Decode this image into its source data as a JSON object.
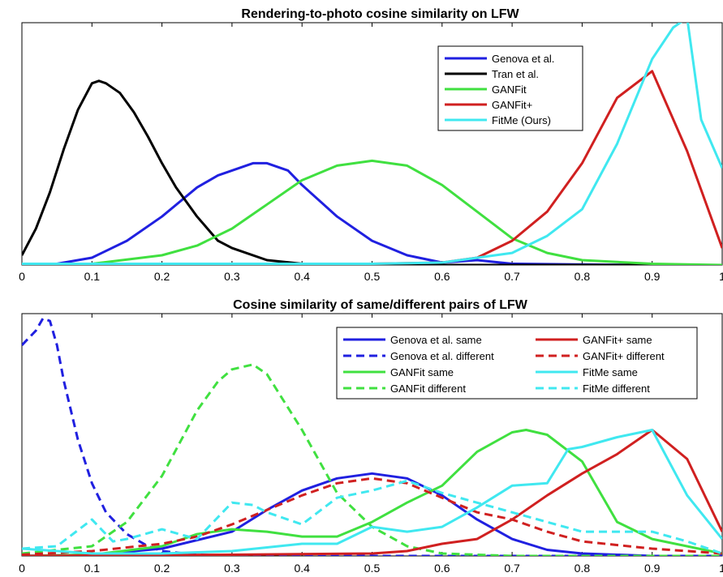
{
  "chart_data": [
    {
      "type": "line",
      "title": "Rendering-to-photo cosine similarity on LFW",
      "xlabel": "",
      "ylabel": "",
      "xlim": [
        0,
        1
      ],
      "ylim": [
        0,
        1
      ],
      "xticks": [
        0,
        0.1,
        0.2,
        0.3,
        0.4,
        0.5,
        0.6,
        0.7,
        0.8,
        0.9,
        1
      ],
      "yticks_shown": false,
      "grid": false,
      "legend_position": "top-right",
      "legend_columns": 1,
      "series": [
        {
          "name": "Genova et al.",
          "color": "#2020e0",
          "dash": "solid",
          "x": [
            0,
            0.05,
            0.1,
            0.15,
            0.2,
            0.25,
            0.28,
            0.3,
            0.33,
            0.35,
            0.38,
            0.4,
            0.45,
            0.5,
            0.55,
            0.6,
            0.65,
            0.7,
            0.8,
            0.9,
            1
          ],
          "y": [
            0,
            0.005,
            0.03,
            0.1,
            0.2,
            0.32,
            0.37,
            0.39,
            0.42,
            0.42,
            0.39,
            0.33,
            0.2,
            0.1,
            0.04,
            0.01,
            0.02,
            0.005,
            0.002,
            0,
            0
          ]
        },
        {
          "name": "Tran et al.",
          "color": "#000000",
          "dash": "solid",
          "x": [
            0,
            0.02,
            0.04,
            0.06,
            0.08,
            0.1,
            0.11,
            0.12,
            0.14,
            0.16,
            0.18,
            0.2,
            0.22,
            0.25,
            0.28,
            0.3,
            0.35,
            0.4,
            0.5,
            0.6,
            1
          ],
          "y": [
            0.04,
            0.15,
            0.3,
            0.48,
            0.64,
            0.75,
            0.76,
            0.75,
            0.71,
            0.63,
            0.53,
            0.42,
            0.32,
            0.2,
            0.1,
            0.07,
            0.02,
            0.005,
            0.002,
            0,
            0
          ]
        },
        {
          "name": "GANFit",
          "color": "#40e040",
          "dash": "solid",
          "x": [
            0,
            0.1,
            0.2,
            0.25,
            0.3,
            0.35,
            0.4,
            0.45,
            0.5,
            0.55,
            0.6,
            0.65,
            0.7,
            0.75,
            0.8,
            0.9,
            1
          ],
          "y": [
            0,
            0.005,
            0.04,
            0.08,
            0.15,
            0.25,
            0.35,
            0.41,
            0.43,
            0.41,
            0.33,
            0.22,
            0.11,
            0.05,
            0.02,
            0.005,
            0
          ]
        },
        {
          "name": "GANFit+",
          "color": "#d02020",
          "dash": "solid",
          "x": [
            0,
            0.4,
            0.5,
            0.6,
            0.65,
            0.7,
            0.75,
            0.8,
            0.85,
            0.9,
            0.95,
            1
          ],
          "y": [
            0,
            0.005,
            0.005,
            0.01,
            0.03,
            0.1,
            0.22,
            0.42,
            0.69,
            0.8,
            0.47,
            0.07
          ]
        },
        {
          "name": "FitMe (Ours)",
          "color": "#40e8f0",
          "dash": "solid",
          "x": [
            0,
            0.5,
            0.6,
            0.7,
            0.75,
            0.8,
            0.85,
            0.9,
            0.93,
            0.95,
            0.97,
            1
          ],
          "y": [
            0.005,
            0.005,
            0.01,
            0.05,
            0.12,
            0.23,
            0.5,
            0.85,
            0.98,
            1.02,
            0.6,
            0.4
          ]
        }
      ]
    },
    {
      "type": "line",
      "title": "Cosine similarity of same/different pairs of LFW",
      "xlabel": "",
      "ylabel": "",
      "xlim": [
        0,
        1
      ],
      "ylim": [
        0,
        1
      ],
      "xticks": [
        0,
        0.1,
        0.2,
        0.3,
        0.4,
        0.5,
        0.6,
        0.7,
        0.8,
        0.9,
        1
      ],
      "yticks_shown": false,
      "grid": false,
      "legend_position": "top-right",
      "legend_columns": 2,
      "series": [
        {
          "name": "Genova et al. same",
          "color": "#2020e0",
          "dash": "solid",
          "x": [
            0,
            0.1,
            0.2,
            0.3,
            0.35,
            0.4,
            0.45,
            0.5,
            0.55,
            0.6,
            0.65,
            0.7,
            0.75,
            0.8,
            0.9,
            1
          ],
          "y": [
            0,
            0.005,
            0.03,
            0.1,
            0.19,
            0.27,
            0.32,
            0.34,
            0.32,
            0.25,
            0.15,
            0.07,
            0.025,
            0.01,
            0,
            0
          ]
        },
        {
          "name": "Genova et al. different",
          "color": "#2020e0",
          "dash": "dash",
          "x": [
            0,
            0.02,
            0.03,
            0.04,
            0.05,
            0.06,
            0.08,
            0.1,
            0.12,
            0.15,
            0.18,
            0.2,
            0.25,
            0.3,
            1
          ],
          "y": [
            0.87,
            0.93,
            0.98,
            0.97,
            0.87,
            0.72,
            0.48,
            0.3,
            0.18,
            0.09,
            0.04,
            0.02,
            0.005,
            0,
            0
          ]
        },
        {
          "name": "GANFit same",
          "color": "#40e040",
          "dash": "solid",
          "x": [
            0,
            0.1,
            0.2,
            0.25,
            0.3,
            0.35,
            0.4,
            0.45,
            0.5,
            0.55,
            0.6,
            0.65,
            0.7,
            0.72,
            0.75,
            0.8,
            0.85,
            0.9,
            1
          ],
          "y": [
            0,
            0.005,
            0.04,
            0.09,
            0.11,
            0.1,
            0.08,
            0.08,
            0.14,
            0.22,
            0.29,
            0.43,
            0.51,
            0.52,
            0.5,
            0.39,
            0.14,
            0.07,
            0.01
          ]
        },
        {
          "name": "GANFit different",
          "color": "#40e040",
          "dash": "dash",
          "x": [
            0,
            0.1,
            0.15,
            0.2,
            0.25,
            0.28,
            0.3,
            0.33,
            0.35,
            0.4,
            0.45,
            0.5,
            0.55,
            0.6,
            0.7,
            1
          ],
          "y": [
            0.01,
            0.04,
            0.14,
            0.33,
            0.6,
            0.72,
            0.77,
            0.79,
            0.75,
            0.52,
            0.26,
            0.12,
            0.04,
            0.01,
            0,
            0
          ]
        },
        {
          "name": "GANFit+ same",
          "color": "#d02020",
          "dash": "solid",
          "x": [
            0,
            0.3,
            0.5,
            0.55,
            0.6,
            0.65,
            0.7,
            0.75,
            0.8,
            0.85,
            0.9,
            0.95,
            1
          ],
          "y": [
            0,
            0.005,
            0.01,
            0.02,
            0.05,
            0.07,
            0.15,
            0.25,
            0.34,
            0.42,
            0.52,
            0.4,
            0.1
          ]
        },
        {
          "name": "GANFit+ different",
          "color": "#d02020",
          "dash": "dash",
          "x": [
            0,
            0.1,
            0.2,
            0.25,
            0.3,
            0.35,
            0.4,
            0.45,
            0.5,
            0.55,
            0.6,
            0.65,
            0.7,
            0.75,
            0.8,
            0.9,
            1
          ],
          "y": [
            0.005,
            0.02,
            0.05,
            0.08,
            0.13,
            0.19,
            0.25,
            0.3,
            0.32,
            0.3,
            0.24,
            0.18,
            0.15,
            0.1,
            0.06,
            0.03,
            0.01
          ]
        },
        {
          "name": "FitMe same",
          "color": "#40e8f0",
          "dash": "solid",
          "x": [
            0,
            0.1,
            0.2,
            0.3,
            0.4,
            0.45,
            0.5,
            0.55,
            0.6,
            0.65,
            0.7,
            0.75,
            0.78,
            0.8,
            0.85,
            0.9,
            0.95,
            1
          ],
          "y": [
            0.03,
            0.01,
            0.01,
            0.02,
            0.05,
            0.05,
            0.12,
            0.1,
            0.12,
            0.2,
            0.29,
            0.3,
            0.44,
            0.45,
            0.49,
            0.52,
            0.25,
            0.07
          ]
        },
        {
          "name": "FitMe different",
          "color": "#40e8f0",
          "dash": "dash",
          "x": [
            0,
            0.05,
            0.1,
            0.13,
            0.15,
            0.2,
            0.25,
            0.3,
            0.33,
            0.35,
            0.4,
            0.45,
            0.5,
            0.55,
            0.6,
            0.7,
            0.8,
            0.9,
            0.95,
            1
          ],
          "y": [
            0.03,
            0.04,
            0.15,
            0.06,
            0.07,
            0.11,
            0.07,
            0.22,
            0.21,
            0.18,
            0.13,
            0.24,
            0.27,
            0.31,
            0.26,
            0.18,
            0.1,
            0.1,
            0.06,
            0.01
          ]
        }
      ]
    }
  ]
}
